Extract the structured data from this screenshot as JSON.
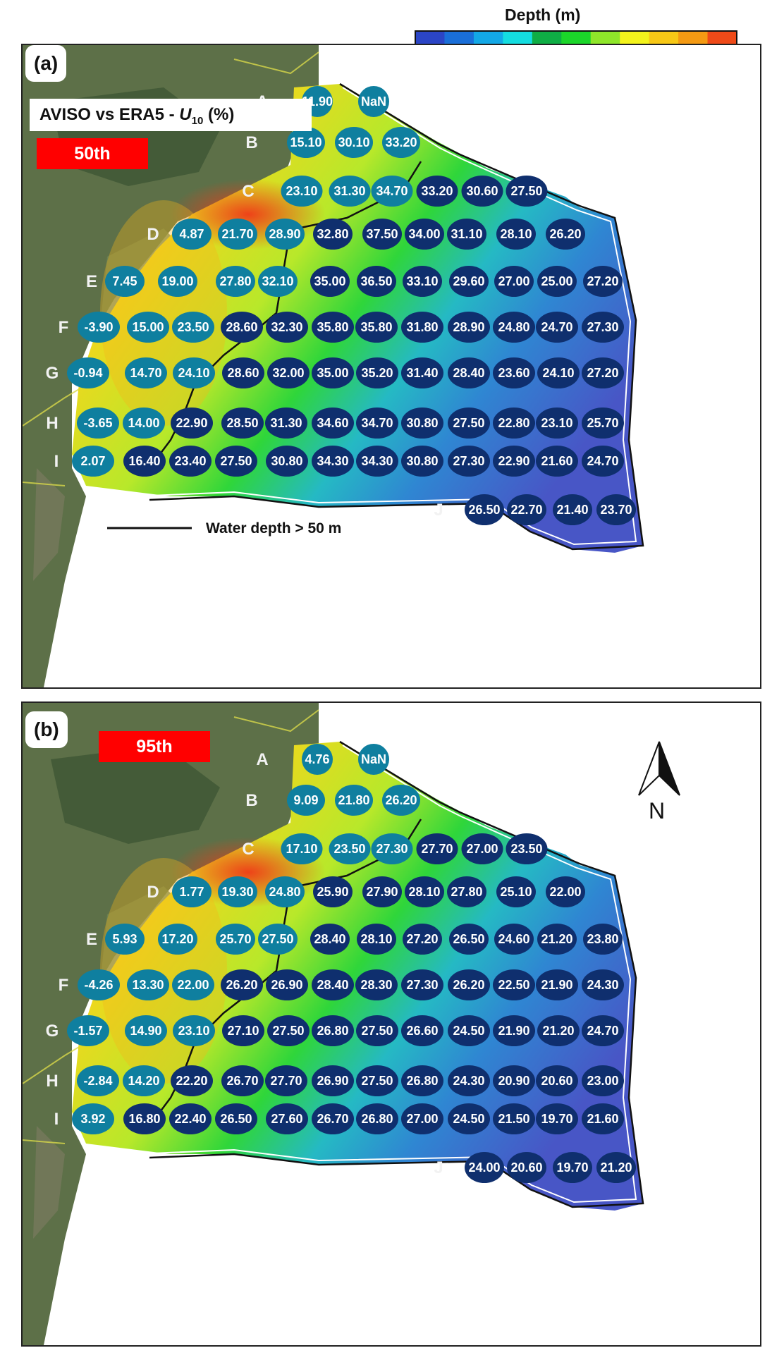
{
  "colorbar": {
    "title": "Depth (m)",
    "ticks": [
      "-2000",
      "-500",
      "-100",
      "-20",
      "0"
    ],
    "colors": [
      "#2b45c6",
      "#1a6fd9",
      "#13a8e6",
      "#14dde0",
      "#0fae45",
      "#1bd62a",
      "#8fe62a",
      "#f3f31c",
      "#f7c816",
      "#f49a13",
      "#ef4a18"
    ]
  },
  "map": {
    "row_labels": [
      "A",
      "B",
      "C",
      "D",
      "E",
      "F",
      "G",
      "H",
      "I",
      "J"
    ],
    "marker_colors": {
      "shallow": "#0f7f9f",
      "deep": "#0f2f6e"
    },
    "north_label": "N",
    "legend_text": "Water depth > 50 m"
  },
  "panels": [
    {
      "letter": "(a)",
      "title_prefix": "AVISO vs ERA5 - ",
      "title_var": "U",
      "title_sub": "10",
      "title_unit": " (%)",
      "percentile": "50th",
      "rows": [
        [
          "11.90",
          "NaN"
        ],
        [
          "15.10",
          "30.10",
          "33.20"
        ],
        [
          "23.10",
          "31.30",
          "34.70",
          "33.20",
          "30.60",
          "27.50"
        ],
        [
          "4.87",
          "21.70",
          "28.90",
          "32.80",
          "37.50",
          "34.00",
          "31.10",
          "28.10",
          "26.20"
        ],
        [
          "7.45",
          "19.00",
          "27.80",
          "32.10",
          "35.00",
          "36.50",
          "33.10",
          "29.60",
          "27.00",
          "25.00",
          "27.20"
        ],
        [
          "-3.90",
          "15.00",
          "23.50",
          "28.60",
          "32.30",
          "35.80",
          "35.80",
          "31.80",
          "28.90",
          "24.80",
          "24.70",
          "27.30"
        ],
        [
          "-0.94",
          "14.70",
          "24.10",
          "28.60",
          "32.00",
          "35.00",
          "35.20",
          "31.40",
          "28.40",
          "23.60",
          "24.10",
          "27.20"
        ],
        [
          "-3.65",
          "14.00",
          "22.90",
          "28.50",
          "31.30",
          "34.60",
          "34.70",
          "30.80",
          "27.50",
          "22.80",
          "23.10",
          "25.70"
        ],
        [
          "2.07",
          "16.40",
          "23.40",
          "27.50",
          "30.80",
          "34.30",
          "34.30",
          "30.80",
          "27.30",
          "22.90",
          "21.60",
          "24.70"
        ],
        [
          "26.50",
          "22.70",
          "21.40",
          "23.70"
        ]
      ]
    },
    {
      "letter": "(b)",
      "percentile": "95th",
      "rows": [
        [
          "4.76",
          "NaN"
        ],
        [
          "9.09",
          "21.80",
          "26.20"
        ],
        [
          "17.10",
          "23.50",
          "27.30",
          "27.70",
          "27.00",
          "23.50"
        ],
        [
          "1.77",
          "19.30",
          "24.80",
          "25.90",
          "27.90",
          "28.10",
          "27.80",
          "25.10",
          "22.00"
        ],
        [
          "5.93",
          "17.20",
          "25.70",
          "27.50",
          "28.40",
          "28.10",
          "27.20",
          "26.50",
          "24.60",
          "21.20",
          "23.80"
        ],
        [
          "-4.26",
          "13.30",
          "22.00",
          "26.20",
          "26.90",
          "28.40",
          "28.30",
          "27.30",
          "26.20",
          "22.50",
          "21.90",
          "24.30"
        ],
        [
          "-1.57",
          "14.90",
          "23.10",
          "27.10",
          "27.50",
          "26.80",
          "27.50",
          "26.60",
          "24.50",
          "21.90",
          "21.20",
          "24.70"
        ],
        [
          "-2.84",
          "14.20",
          "22.20",
          "26.70",
          "27.70",
          "26.90",
          "27.50",
          "26.80",
          "24.30",
          "20.90",
          "20.60",
          "23.00"
        ],
        [
          "3.92",
          "16.80",
          "22.40",
          "26.50",
          "27.60",
          "26.70",
          "26.80",
          "27.00",
          "24.50",
          "21.50",
          "19.70",
          "21.60"
        ],
        [
          "24.00",
          "20.60",
          "19.70",
          "21.20"
        ]
      ]
    }
  ]
}
